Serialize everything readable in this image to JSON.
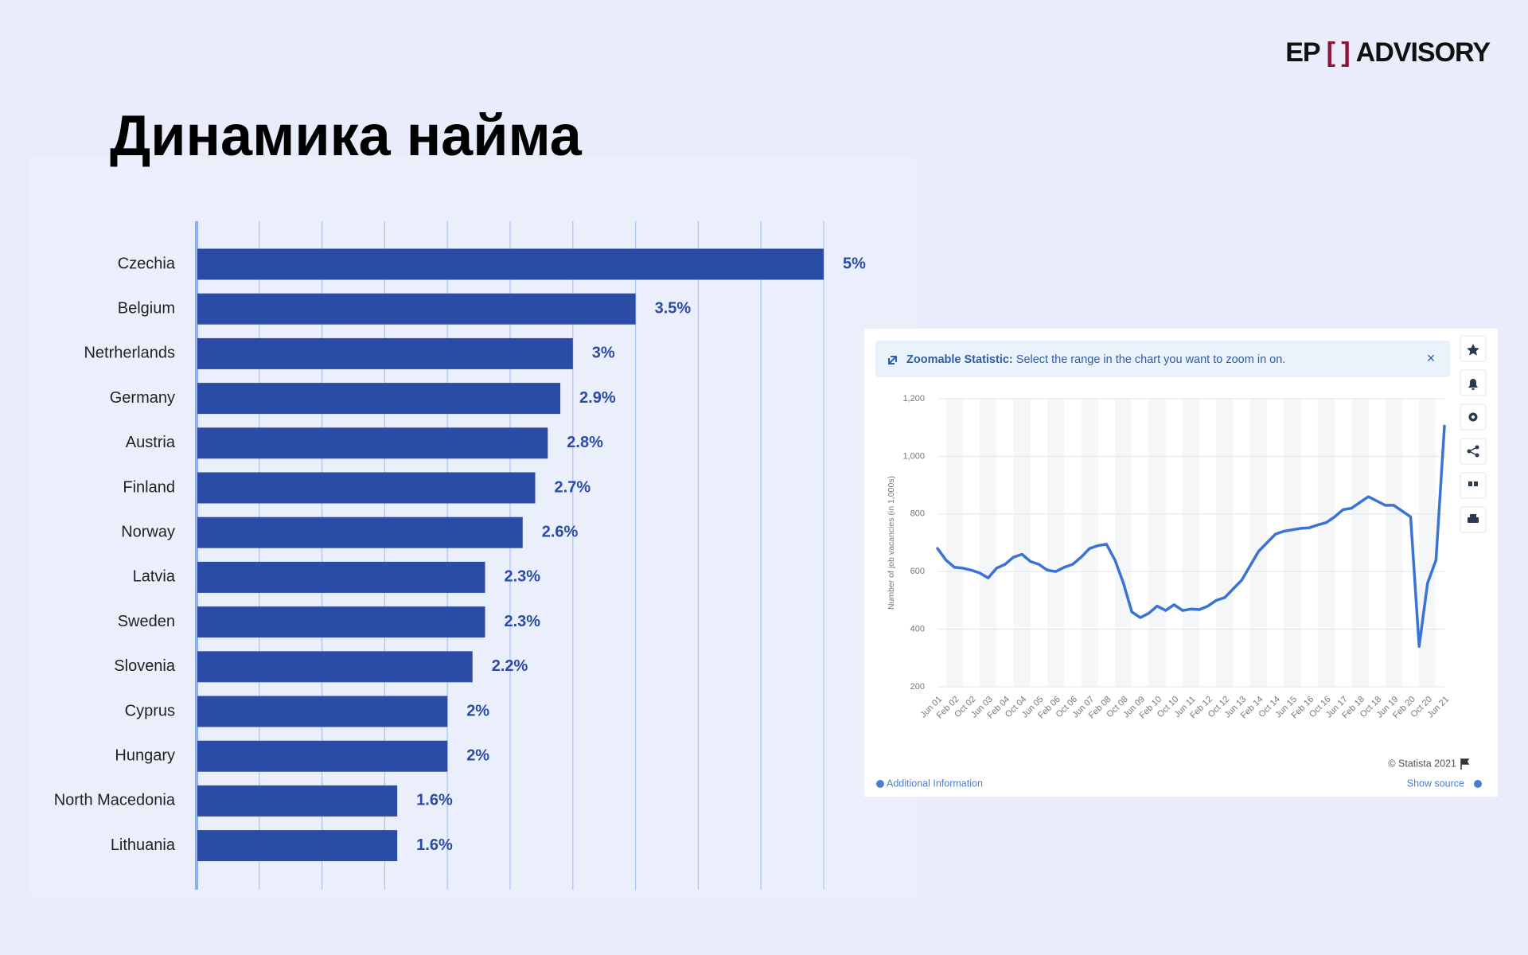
{
  "slide": {
    "title": "Динамика найма",
    "logo": {
      "left": "EP",
      "bracket": "[ ]",
      "right": "ADVISORY"
    }
  },
  "chart_data": [
    {
      "type": "hbar",
      "categories": [
        "Czechia",
        "Belgium",
        "Netrherlands",
        "Germany",
        "Austria",
        "Finland",
        "Norway",
        "Latvia",
        "Sweden",
        "Slovenia",
        "Cyprus",
        "Hungary",
        "North Macedonia",
        "Lithuania"
      ],
      "values": [
        5,
        3.5,
        3,
        2.9,
        2.8,
        2.7,
        2.6,
        2.3,
        2.3,
        2.2,
        2,
        2,
        1.6,
        1.6
      ],
      "value_labels": [
        "5%",
        "3.5%",
        "3%",
        "2.9%",
        "2.8%",
        "2.7%",
        "2.6%",
        "2.3%",
        "2.3%",
        "2.2%",
        "2%",
        "2%",
        "1.6%",
        "1.6%"
      ],
      "color": "#2a4ba6",
      "xlim": [
        0,
        5
      ],
      "xticks": [
        0,
        0.5,
        1,
        1.5,
        2,
        2.5,
        3,
        3.5,
        4,
        4.5,
        5
      ],
      "grid": true
    },
    {
      "type": "line",
      "y_label": "Number of job vacancies (in 1,000s)",
      "categories": [
        "Jun 01",
        null,
        "Feb 02",
        null,
        "Oct 02",
        null,
        "Jun 03",
        null,
        "Feb 04",
        null,
        "Oct 04",
        null,
        "Jun 05",
        null,
        "Feb 06",
        null,
        "Oct 06",
        null,
        "Jun 07",
        null,
        "Feb 08",
        null,
        "Oct 08",
        null,
        "Jun 09",
        null,
        "Feb 10",
        null,
        "Oct 10",
        null,
        "Jun 11",
        null,
        "Feb 12",
        null,
        "Oct 12",
        null,
        "Jun 13",
        null,
        "Feb 14",
        null,
        "Oct 14",
        null,
        "Jun 15",
        null,
        "Feb 16",
        null,
        "Oct 16",
        null,
        "Jun 17",
        null,
        "Feb 18",
        null,
        "Oct 18",
        null,
        "Jun 19",
        null,
        "Feb 20",
        null,
        "Oct 20",
        null,
        "Jun 21"
      ],
      "series": [
        {
          "name": "Job vacancies",
          "color": "#3b73d4",
          "values": [
            680,
            640,
            615,
            612,
            605,
            595,
            578,
            612,
            625,
            650,
            660,
            635,
            625,
            605,
            600,
            615,
            625,
            650,
            680,
            690,
            695,
            640,
            560,
            460,
            440,
            455,
            480,
            465,
            485,
            465,
            470,
            468,
            480,
            500,
            510,
            540,
            570,
            620,
            670,
            700,
            730,
            740,
            745,
            750,
            752,
            762,
            770,
            790,
            815,
            820,
            840,
            860,
            845,
            830,
            830,
            810,
            790,
            340,
            560,
            640,
            1105
          ]
        }
      ],
      "ylim": [
        200,
        1200
      ],
      "yticks": [
        200,
        400,
        600,
        800,
        {
          "value": 1000,
          "label": "1,000"
        },
        {
          "value": 1200,
          "label": "1,200"
        }
      ],
      "grid": true
    }
  ],
  "widget": {
    "banner_bold": "Zoomable Statistic:",
    "banner_text": "Select the range in the chart you want to zoom in on.",
    "close": "×",
    "copyright": "© Statista 2021",
    "additional": "Additional Information",
    "source": "Show source"
  }
}
